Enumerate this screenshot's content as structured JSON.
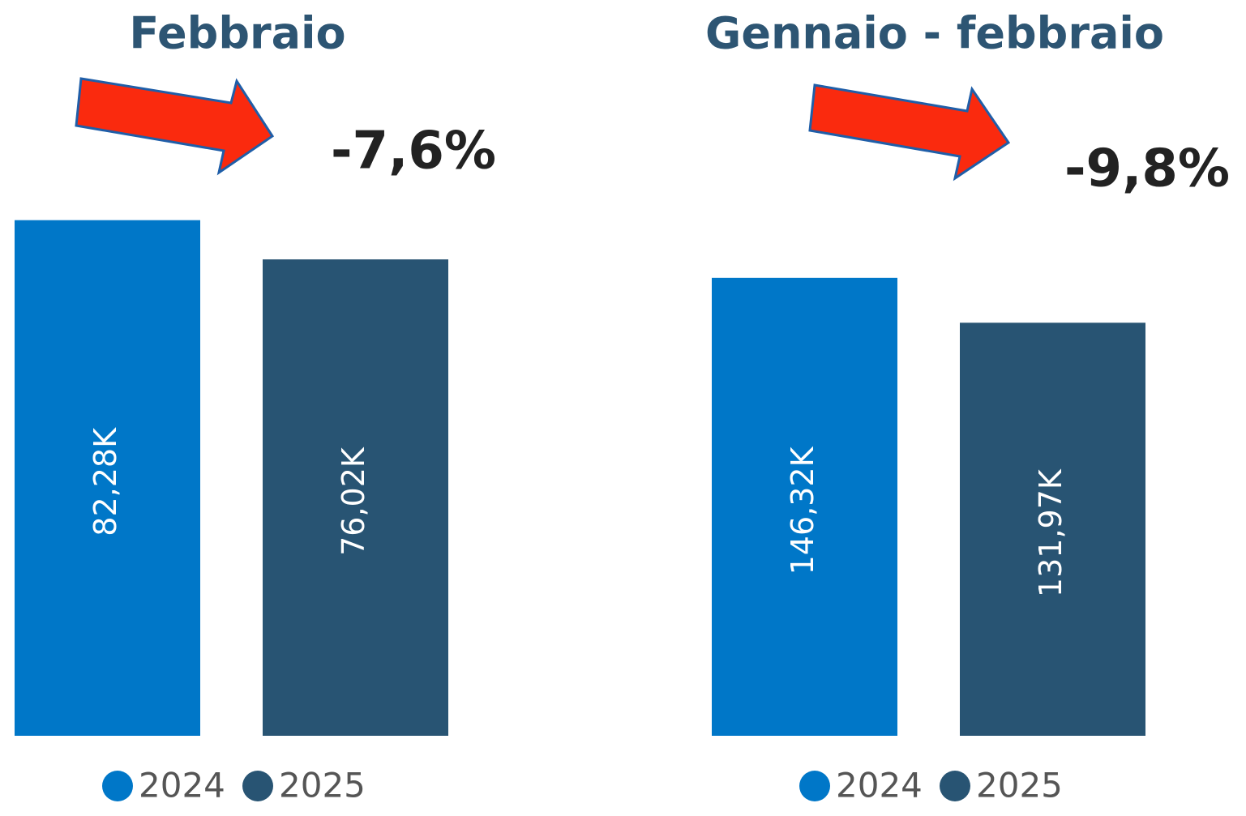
{
  "chart_data": [
    {
      "type": "bar",
      "title": "Febbraio",
      "annotation": "-7,6%",
      "series": [
        {
          "name": "2024",
          "color": "#0077c8",
          "values": [
            82280
          ],
          "value_labels": [
            "82,28K"
          ]
        },
        {
          "name": "2025",
          "color": "#285473",
          "values": [
            76020
          ],
          "value_labels": [
            "76,02K"
          ]
        }
      ],
      "ylim": [
        0,
        90000
      ]
    },
    {
      "type": "bar",
      "title": "Gennaio - febbraio",
      "annotation": "-9,8%",
      "series": [
        {
          "name": "2024",
          "color": "#0077c8",
          "values": [
            146320
          ],
          "value_labels": [
            "146,32K"
          ]
        },
        {
          "name": "2025",
          "color": "#285473",
          "values": [
            131970
          ],
          "value_labels": [
            "131,97K"
          ]
        }
      ],
      "ylim": [
        0,
        160000
      ]
    }
  ]
}
